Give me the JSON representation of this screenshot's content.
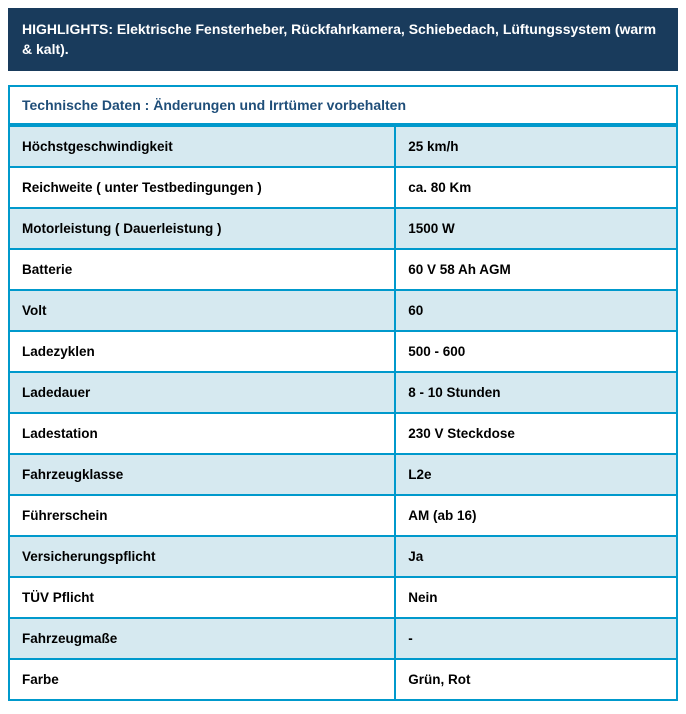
{
  "highlights": {
    "text": "HIGHLIGHTS: Elektrische Fensterheber, Rückfahrkamera, Schiebedach, Lüftungssystem (warm & kalt).",
    "background_color": "#193b5c",
    "text_color": "#ffffff",
    "font_weight": "bold",
    "font_size": 14
  },
  "spec_table": {
    "header": "Technische Daten : Änderungen und Irrtümer vorbehalten",
    "header_color": "#1f4e79",
    "border_color": "#0099cc",
    "row_alt_bg": "#d6e9f0",
    "row_bg": "#ffffff",
    "label_fontsize": 13.5,
    "label_fontweight": "bold",
    "col_widths": [
      "58%",
      "42%"
    ],
    "rows": [
      {
        "label": "Höchstgeschwindigkeit",
        "value": "25 km/h"
      },
      {
        "label": "Reichweite ( unter Testbedingungen )",
        "value": "ca. 80 Km"
      },
      {
        "label": "Motorleistung ( Dauerleistung )",
        "value": "1500 W"
      },
      {
        "label": "Batterie",
        "value": "60 V 58 Ah AGM"
      },
      {
        "label": "Volt",
        "value": "60"
      },
      {
        "label": "Ladezyklen",
        "value": "500 - 600"
      },
      {
        "label": "Ladedauer",
        "value": "8 - 10 Stunden"
      },
      {
        "label": "Ladestation",
        "value": "230 V Steckdose"
      },
      {
        "label": "Fahrzeugklasse",
        "value": "L2e"
      },
      {
        "label": "Führerschein",
        "value": "AM (ab 16)"
      },
      {
        "label": "Versicherungspflicht",
        "value": "Ja"
      },
      {
        "label": "TÜV Pflicht",
        "value": "Nein"
      },
      {
        "label": "Fahrzeugmaße",
        "value": "-"
      },
      {
        "label": "Farbe",
        "value": "Grün, Rot"
      }
    ]
  }
}
